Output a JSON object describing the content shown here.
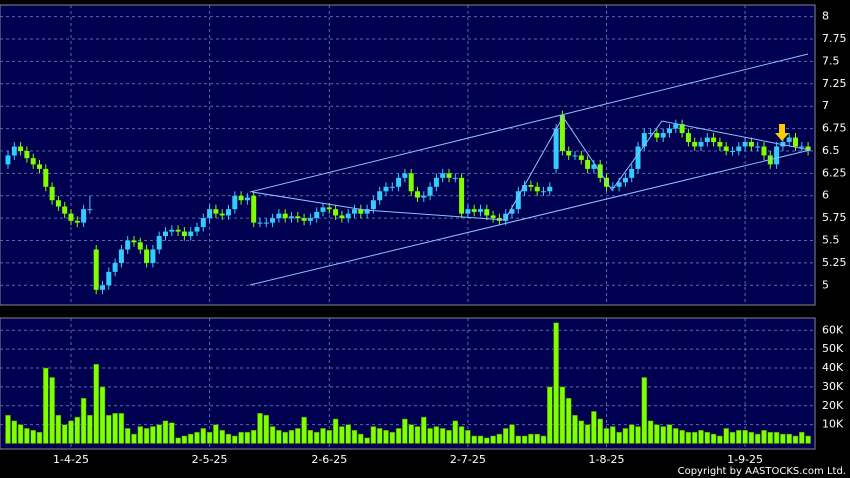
{
  "chart_data": [
    {
      "type": "candlestick",
      "up_color": "#33ccff",
      "down_color": "#80ff00",
      "grid": true,
      "ylim": [
        4.78,
        8.13
      ],
      "yticks": [
        5,
        5.25,
        5.5,
        5.75,
        6,
        6.25,
        6.5,
        6.75,
        7,
        7.25,
        7.5,
        7.75,
        8
      ],
      "open": [
        6.35,
        6.45,
        6.55,
        6.5,
        6.42,
        6.35,
        6.3,
        6.1,
        5.95,
        5.88,
        5.8,
        5.72,
        5.7,
        5.85,
        5.4,
        4.95,
        5.0,
        5.15,
        5.25,
        5.4,
        5.5,
        5.48,
        5.4,
        5.25,
        5.4,
        5.55,
        5.6,
        5.62,
        5.6,
        5.55,
        5.6,
        5.65,
        5.75,
        5.85,
        5.8,
        5.78,
        5.85,
        6.0,
        5.95,
        6.0,
        5.7,
        5.7,
        5.7,
        5.75,
        5.8,
        5.75,
        5.77,
        5.75,
        5.72,
        5.75,
        5.82,
        5.87,
        5.85,
        5.78,
        5.75,
        5.8,
        5.85,
        5.8,
        5.85,
        5.95,
        6.05,
        6.1,
        6.1,
        6.2,
        6.25,
        6.05,
        5.98,
        6.0,
        6.1,
        6.2,
        6.25,
        6.2,
        6.2,
        5.8,
        5.85,
        5.82,
        5.85,
        5.78,
        5.75,
        5.72,
        5.8,
        5.85,
        6.05,
        6.12,
        6.1,
        6.05,
        6.05,
        6.3,
        6.9,
        6.5,
        6.45,
        6.45,
        6.4,
        6.3,
        6.35,
        6.2,
        6.1,
        6.1,
        6.15,
        6.2,
        6.3,
        6.55,
        6.7,
        6.7,
        6.65,
        6.7,
        6.75,
        6.8,
        6.7,
        6.6,
        6.55,
        6.6,
        6.65,
        6.6,
        6.55,
        6.5,
        6.5,
        6.55,
        6.6,
        6.55,
        6.55,
        6.45,
        6.35,
        6.55,
        6.6,
        6.65,
        6.55,
        6.55
      ],
      "high": [
        6.5,
        6.6,
        6.6,
        6.55,
        6.47,
        6.4,
        6.35,
        6.15,
        6.0,
        5.93,
        5.85,
        5.77,
        5.9,
        6.0,
        5.45,
        5.05,
        5.2,
        5.3,
        5.45,
        5.55,
        5.55,
        5.53,
        5.45,
        5.45,
        5.6,
        5.65,
        5.67,
        5.67,
        5.65,
        5.65,
        5.7,
        5.8,
        5.9,
        5.9,
        5.85,
        5.9,
        6.05,
        6.05,
        6.03,
        6.05,
        5.75,
        5.75,
        5.8,
        5.85,
        5.85,
        5.82,
        5.82,
        5.8,
        5.8,
        5.87,
        5.92,
        5.92,
        5.9,
        5.83,
        5.85,
        5.9,
        5.9,
        5.9,
        6.0,
        6.1,
        6.15,
        6.15,
        6.25,
        6.3,
        6.3,
        6.1,
        6.05,
        6.15,
        6.25,
        6.3,
        6.3,
        6.25,
        6.25,
        5.9,
        5.9,
        5.9,
        5.9,
        5.83,
        5.8,
        5.85,
        5.9,
        6.1,
        6.17,
        6.17,
        6.15,
        6.1,
        6.15,
        6.8,
        6.95,
        6.55,
        6.5,
        6.5,
        6.45,
        6.4,
        6.4,
        6.25,
        6.15,
        6.2,
        6.25,
        6.35,
        6.6,
        6.75,
        6.75,
        6.75,
        6.75,
        6.8,
        6.85,
        6.85,
        6.75,
        6.65,
        6.65,
        6.7,
        6.7,
        6.65,
        6.6,
        6.55,
        6.6,
        6.65,
        6.65,
        6.6,
        6.6,
        6.5,
        6.6,
        6.65,
        6.7,
        6.7,
        6.6,
        6.6
      ],
      "low": [
        6.3,
        6.4,
        6.45,
        6.37,
        6.3,
        6.25,
        6.05,
        5.9,
        5.83,
        5.75,
        5.67,
        5.65,
        5.65,
        5.8,
        4.9,
        4.9,
        4.95,
        5.1,
        5.2,
        5.35,
        5.43,
        5.35,
        5.2,
        5.2,
        5.35,
        5.5,
        5.55,
        5.55,
        5.5,
        5.5,
        5.55,
        5.6,
        5.7,
        5.75,
        5.73,
        5.73,
        5.8,
        5.9,
        5.9,
        5.65,
        5.65,
        5.65,
        5.65,
        5.7,
        5.7,
        5.7,
        5.7,
        5.67,
        5.67,
        5.7,
        5.77,
        5.8,
        5.73,
        5.7,
        5.7,
        5.75,
        5.75,
        5.75,
        5.8,
        5.9,
        6.0,
        6.05,
        6.05,
        6.15,
        6.0,
        5.93,
        5.93,
        5.95,
        6.05,
        6.15,
        6.15,
        6.15,
        5.75,
        5.75,
        5.77,
        5.77,
        5.73,
        5.7,
        5.67,
        5.67,
        5.75,
        5.8,
        6.0,
        6.05,
        6.0,
        6.0,
        6.0,
        6.25,
        6.45,
        6.4,
        6.4,
        6.35,
        6.25,
        6.25,
        6.15,
        6.05,
        6.05,
        6.05,
        6.1,
        6.15,
        6.25,
        6.5,
        6.65,
        6.6,
        6.6,
        6.65,
        6.7,
        6.65,
        6.55,
        6.5,
        6.5,
        6.55,
        6.55,
        6.5,
        6.45,
        6.45,
        6.45,
        6.5,
        6.5,
        6.5,
        6.4,
        6.3,
        6.3,
        6.5,
        6.55,
        6.5,
        6.5,
        6.45
      ],
      "close": [
        6.45,
        6.55,
        6.5,
        6.42,
        6.35,
        6.3,
        6.1,
        5.95,
        5.88,
        5.8,
        5.72,
        5.7,
        5.85,
        5.85,
        4.95,
        5.0,
        5.15,
        5.25,
        5.4,
        5.5,
        5.48,
        5.4,
        5.25,
        5.4,
        5.55,
        5.6,
        5.62,
        5.6,
        5.55,
        5.6,
        5.65,
        5.75,
        5.85,
        5.8,
        5.78,
        5.85,
        6.0,
        5.95,
        5.98,
        5.7,
        5.7,
        5.7,
        5.75,
        5.8,
        5.75,
        5.77,
        5.75,
        5.72,
        5.75,
        5.82,
        5.87,
        5.85,
        5.78,
        5.75,
        5.8,
        5.85,
        5.8,
        5.85,
        5.95,
        6.05,
        6.1,
        6.1,
        6.2,
        6.25,
        6.05,
        5.98,
        6.0,
        6.1,
        6.2,
        6.25,
        6.2,
        6.2,
        5.8,
        5.85,
        5.82,
        5.85,
        5.78,
        5.75,
        5.72,
        5.8,
        5.85,
        6.05,
        6.12,
        6.1,
        6.05,
        6.05,
        6.1,
        6.75,
        6.5,
        6.45,
        6.45,
        6.4,
        6.3,
        6.35,
        6.2,
        6.1,
        6.1,
        6.15,
        6.2,
        6.3,
        6.55,
        6.7,
        6.7,
        6.65,
        6.7,
        6.75,
        6.8,
        6.7,
        6.6,
        6.55,
        6.6,
        6.65,
        6.6,
        6.55,
        6.5,
        6.5,
        6.55,
        6.6,
        6.55,
        6.55,
        6.45,
        6.35,
        6.55,
        6.6,
        6.65,
        6.55,
        6.55,
        6.5
      ]
    },
    {
      "type": "bar",
      "color": "#80ff00",
      "grid": true,
      "copyright": "Copyright by AASTOCKS.com Ltd.",
      "ylim": [
        0,
        66500
      ],
      "yticks": [
        {
          "value": 10000,
          "label": "10K"
        },
        {
          "value": 20000,
          "label": "20K"
        },
        {
          "value": 30000,
          "label": "30K"
        },
        {
          "value": 40000,
          "label": "40K"
        },
        {
          "value": 50000,
          "label": "50K"
        },
        {
          "value": 60000,
          "label": "60K"
        }
      ],
      "categories": [
        null,
        null,
        null,
        null,
        null,
        null,
        null,
        null,
        null,
        null,
        "1-4-25",
        null,
        null,
        null,
        null,
        null,
        null,
        null,
        null,
        null,
        null,
        null,
        null,
        null,
        null,
        null,
        null,
        null,
        null,
        null,
        null,
        null,
        "2-5-25",
        null,
        null,
        null,
        null,
        null,
        null,
        null,
        null,
        null,
        null,
        null,
        null,
        null,
        null,
        null,
        null,
        null,
        null,
        "2-6-25",
        null,
        null,
        null,
        null,
        null,
        null,
        null,
        null,
        null,
        null,
        null,
        null,
        null,
        null,
        null,
        null,
        null,
        null,
        null,
        null,
        null,
        "2-7-25",
        null,
        null,
        null,
        null,
        null,
        null,
        null,
        null,
        null,
        null,
        null,
        null,
        null,
        null,
        null,
        null,
        null,
        null,
        null,
        null,
        null,
        "1-8-25",
        null,
        null,
        null,
        null,
        null,
        null,
        null,
        null,
        null,
        null,
        null,
        null,
        null,
        null,
        null,
        null,
        null,
        null,
        null,
        null,
        null,
        "1-9-25",
        null,
        null,
        null,
        null,
        null,
        null,
        null,
        null,
        null,
        null
      ],
      "values": [
        15000,
        12000,
        10000,
        8000,
        7000,
        6000,
        40000,
        35000,
        15000,
        10000,
        12000,
        14000,
        24000,
        15000,
        42000,
        30000,
        15000,
        16000,
        16000,
        8000,
        5000,
        9000,
        8000,
        9000,
        10000,
        12000,
        11000,
        3000,
        4000,
        5000,
        6000,
        8000,
        6000,
        10000,
        7000,
        5000,
        4000,
        6000,
        6000,
        7000,
        16000,
        15000,
        9000,
        7000,
        6000,
        7000,
        8000,
        14000,
        7000,
        6000,
        8000,
        7000,
        13000,
        9000,
        10000,
        7000,
        5000,
        3000,
        9000,
        8000,
        7000,
        6000,
        8000,
        13000,
        10000,
        9000,
        14000,
        8000,
        9000,
        8000,
        7000,
        12000,
        9000,
        7000,
        4000,
        4000,
        3000,
        4000,
        5000,
        8000,
        10000,
        4000,
        4000,
        5000,
        5000,
        4000,
        30000,
        64000,
        30000,
        24000,
        15000,
        12000,
        10000,
        17000,
        13000,
        8000,
        9000,
        6000,
        8000,
        10000,
        9000,
        35000,
        12000,
        10000,
        9000,
        10000,
        8000,
        7000,
        6000,
        6000,
        7000,
        6000,
        5000,
        4000,
        8000,
        6000,
        7000,
        7000,
        6000,
        5000,
        7000,
        6000,
        6000,
        5000,
        5000,
        4000,
        6000,
        4000
      ]
    }
  ]
}
